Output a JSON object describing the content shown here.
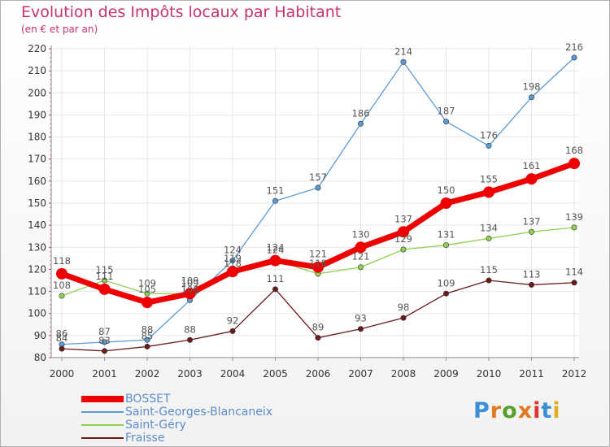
{
  "title": "Evolution des Impôts locaux par Habitant",
  "subtitle": "(en € et par an)",
  "logo": {
    "text": "Proxiti",
    "letters": [
      "P",
      "r",
      "o",
      "x",
      "i",
      "t",
      "i"
    ],
    "colors": [
      "#3a8fd6",
      "#e07a1f",
      "#5aa02c",
      "#e07a1f",
      "#d33",
      "#3a8fd6",
      "#e0b020"
    ]
  },
  "chart_data": {
    "type": "line",
    "title": "Evolution des Impôts locaux par Habitant",
    "subtitle": "(en € et par an)",
    "x": [
      "2000",
      "2001",
      "2002",
      "2003",
      "2004",
      "2005",
      "2006",
      "2007",
      "2008",
      "2009",
      "2010",
      "2011",
      "2012"
    ],
    "ylim": [
      80,
      220
    ],
    "yticks": [
      80,
      90,
      100,
      110,
      120,
      130,
      140,
      150,
      160,
      170,
      180,
      190,
      200,
      210,
      220
    ],
    "grid": true,
    "legend_position": "bottom-left",
    "series": [
      {
        "name": "BOSSET",
        "color": "#ee0000",
        "width": 7,
        "marker": 7,
        "values": [
          118,
          111,
          105,
          109,
          119,
          124,
          121,
          130,
          137,
          150,
          155,
          161,
          168
        ]
      },
      {
        "name": "Saint-Georges-Blancaneix",
        "color": "#5b9bd5",
        "width": 1.3,
        "marker": 3.2,
        "values": [
          86,
          87,
          88,
          106,
          124,
          151,
          157,
          186,
          214,
          187,
          176,
          198,
          216
        ]
      },
      {
        "name": "Saint-Géry",
        "color": "#90d050",
        "width": 1.3,
        "marker": 3.2,
        "values": [
          108,
          115,
          109,
          109,
          118,
          124,
          118,
          121,
          129,
          131,
          134,
          137,
          139
        ]
      },
      {
        "name": "Fraisse",
        "color": "#6b1a1a",
        "width": 1.3,
        "marker": 3.2,
        "values": [
          84,
          83,
          85,
          88,
          92,
          111,
          89,
          93,
          98,
          109,
          115,
          113,
          114
        ]
      }
    ]
  }
}
